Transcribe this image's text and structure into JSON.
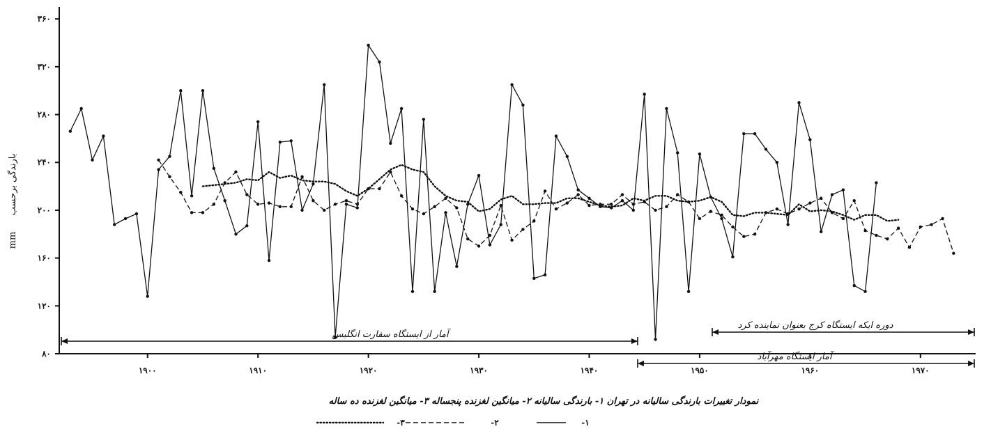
{
  "chart_data": {
    "type": "line",
    "ylabel": "بارندگی برحسب",
    "yunit": "mm",
    "ylim": [
      80,
      370
    ],
    "xlim": [
      1892,
      1975
    ],
    "yticks": [
      80,
      120,
      160,
      200,
      240,
      280,
      320,
      360
    ],
    "ytick_labels": [
      "۸۰",
      "۱۲۰",
      "۱۶۰",
      "۲۰۰",
      "۲۴۰",
      "۲۸۰",
      "۳۲۰",
      "۳۶۰"
    ],
    "xticks": [
      1900,
      1910,
      1920,
      1930,
      1940,
      1950,
      1960,
      1970
    ],
    "xtick_labels": [
      "۱۹۰۰",
      "۱۹۱۰",
      "۱۹۲۰",
      "۱۹۳۰",
      "۱۹۴۰",
      "۱۹۵۰",
      "۱۹۶۰",
      "۱۹۷۰"
    ],
    "series": [
      {
        "name": "بارندگی سالیانه",
        "style": "solid",
        "x": [
          1893,
          1894,
          1895,
          1896,
          1897,
          1898,
          1899,
          1900,
          1901,
          1902,
          1903,
          1904,
          1905,
          1906,
          1907,
          1908,
          1909,
          1910,
          1911,
          1912,
          1913,
          1914,
          1915,
          1916,
          1917,
          1918,
          1919,
          1920,
          1921,
          1922,
          1923,
          1924,
          1925,
          1926,
          1927,
          1928,
          1929,
          1930,
          1931,
          1932,
          1933,
          1934,
          1935,
          1936,
          1937,
          1938,
          1939,
          1940,
          1941,
          1942,
          1943,
          1944,
          1945,
          1946,
          1947,
          1948,
          1949,
          1950,
          1951,
          1952,
          1953,
          1954,
          1955,
          1956,
          1957,
          1958,
          1959,
          1960,
          1961,
          1962,
          1963,
          1964,
          1965,
          1966
        ],
        "values": [
          266,
          285,
          242,
          262,
          188,
          193,
          197,
          128,
          234,
          245,
          300,
          212,
          300,
          235,
          208,
          180,
          187,
          274,
          158,
          257,
          258,
          200,
          222,
          305,
          94,
          205,
          202,
          338,
          324,
          256,
          285,
          132,
          276,
          132,
          198,
          153,
          205,
          229,
          171,
          188,
          305,
          288,
          143,
          146,
          262,
          245,
          217,
          210,
          203,
          202,
          208,
          200,
          297,
          92,
          285,
          248,
          132,
          247,
          211,
          193,
          161,
          264,
          264,
          251,
          240,
          188,
          290,
          259,
          182,
          213,
          217,
          137,
          132,
          223
        ],
        "color": "#111111"
      },
      {
        "name": "میانگین لغزنده پنجساله",
        "style": "dashed",
        "x": [
          1901,
          1902,
          1903,
          1904,
          1905,
          1906,
          1907,
          1908,
          1909,
          1910,
          1911,
          1912,
          1913,
          1914,
          1915,
          1916,
          1917,
          1918,
          1919,
          1920,
          1921,
          1922,
          1923,
          1924,
          1925,
          1926,
          1927,
          1928,
          1929,
          1930,
          1931,
          1932,
          1933,
          1934,
          1935,
          1936,
          1937,
          1938,
          1939,
          1940,
          1941,
          1942,
          1943,
          1944,
          1945,
          1946,
          1947,
          1948,
          1949,
          1950,
          1951,
          1952,
          1953,
          1954,
          1955,
          1956,
          1957,
          1958,
          1959,
          1960,
          1961,
          1962,
          1963,
          1964,
          1965,
          1966,
          1967,
          1968,
          1969,
          1970,
          1971,
          1972,
          1973
        ],
        "values": [
          242,
          228,
          215,
          198,
          198,
          205,
          223,
          232,
          213,
          205,
          206,
          203,
          203,
          228,
          208,
          200,
          205,
          208,
          205,
          218,
          218,
          232,
          212,
          201,
          197,
          203,
          210,
          202,
          176,
          170,
          179,
          204,
          175,
          184,
          191,
          216,
          201,
          206,
          213,
          204,
          205,
          205,
          213,
          205,
          207,
          200,
          203,
          213,
          207,
          193,
          199,
          196,
          186,
          178,
          180,
          198,
          201,
          197,
          201,
          206,
          210,
          198,
          193,
          208,
          183,
          179,
          176,
          185,
          169,
          186,
          188,
          193,
          164
        ],
        "color": "#111111"
      },
      {
        "name": "میانگین لغزنده ده ساله",
        "style": "dotted",
        "x": [
          1905,
          1906,
          1907,
          1908,
          1909,
          1910,
          1911,
          1912,
          1913,
          1914,
          1915,
          1916,
          1917,
          1918,
          1919,
          1920,
          1921,
          1922,
          1923,
          1924,
          1925,
          1926,
          1927,
          1928,
          1929,
          1930,
          1931,
          1932,
          1933,
          1934,
          1935,
          1936,
          1937,
          1938,
          1939,
          1940,
          1941,
          1942,
          1943,
          1944,
          1945,
          1946,
          1947,
          1948,
          1949,
          1950,
          1951,
          1952,
          1953,
          1954,
          1955,
          1956,
          1957,
          1958,
          1959,
          1960,
          1961,
          1962,
          1963,
          1964,
          1965,
          1966,
          1967,
          1968
        ],
        "values": [
          220,
          221,
          222,
          223,
          226,
          225,
          232,
          227,
          229,
          225,
          224,
          224,
          222,
          216,
          212,
          218,
          226,
          234,
          238,
          234,
          232,
          220,
          212,
          208,
          207,
          199,
          201,
          209,
          212,
          205,
          205,
          206,
          206,
          210,
          210,
          207,
          204,
          203,
          204,
          210,
          208,
          212,
          212,
          208,
          207,
          208,
          211,
          207,
          196,
          195,
          198,
          198,
          197,
          196,
          205,
          199,
          200,
          199,
          196,
          192,
          196,
          196,
          191,
          192
        ],
        "color": "#111111"
      }
    ],
    "annotations": {
      "embassy_data": "آمار از ایستگاه سفارت انگلیس",
      "mehrabad_data": "آمار ایستگاه مهرآباد",
      "karaj_period": "دوره ایکه ایستگاه کرج بعنوان نماینده کرد",
      "caption": "نمودار تغییرات بارندگی سالیانه در تهران   ۱- بارندگی سالیانه   ۲- میانگین لغزنده پنجساله   ۳- میانگین لغزنده ده ساله"
    },
    "legend": [
      {
        "num": "-۱",
        "style": "solid"
      },
      {
        "num": "-۲",
        "style": "dashed"
      },
      {
        "num": "-۳",
        "style": "dotted"
      }
    ],
    "grid": false
  }
}
